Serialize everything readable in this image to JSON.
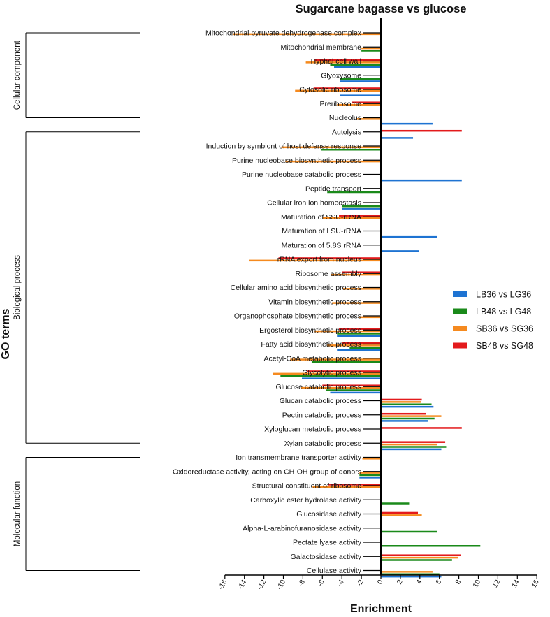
{
  "chart_data": {
    "type": "bar",
    "orientation": "horizontal",
    "title": "Sugarcane bagasse vs glucose",
    "xlabel": "Enrichment",
    "ylabel": "GO terms",
    "xlim": [
      -16,
      16
    ],
    "x_ticks": [
      "-16",
      "-14",
      "-12",
      "-10",
      "-8",
      "-6",
      "-4",
      "-2",
      "0",
      "2",
      "4",
      "6",
      "8",
      "10",
      "12",
      "14",
      "16"
    ],
    "legend_position": "right",
    "groups": [
      {
        "name": "Cellular component",
        "from": 0,
        "to": 6
      },
      {
        "name": "Biological process",
        "from": 7,
        "to": 29
      },
      {
        "name": "Molecular function",
        "from": 30,
        "to": 38
      }
    ],
    "series": [
      {
        "name": "LB36 vs LG36",
        "color": "#1e73d2"
      },
      {
        "name": "LB48 vs LG48",
        "color": "#1a8a1a"
      },
      {
        "name": "SB36 vs SG36",
        "color": "#f58a1f"
      },
      {
        "name": "SB48 vs SG48",
        "color": "#e31a1c"
      }
    ],
    "categories": [
      "Mitochondrial pyruvate dehydrogenase complex",
      "Mitochondrial membrane",
      "Hyphal cell wall",
      "Glyoxysome",
      "Cytosolic ribosome",
      "Preribosome",
      "Nucleolus",
      "Autolysis",
      "Induction by symbiont of host defense response",
      "Purine nucleobase biosynthetic process",
      "Purine nucleobase catabolic process",
      "Peptide transport",
      "Cellular iron ion homeostasis",
      "Maturation of SSU-rRNA",
      "Maturation of LSU-rRNA",
      "Maturation of 5.8S rRNA",
      "rRNA export from nucleus",
      "Ribosome assembly",
      "Cellular amino acid biosynthetic process",
      "Vitamin biosynthetic process",
      "Organophosphate biosynthetic process",
      "Ergosterol biosynthetic process",
      "Fatty acid biosynthetic process",
      "Acetyl-CoA metabolic process",
      "Glycolytic process",
      "Glucose catabolic process",
      "Glucan catabolic process",
      "Pectin catabolic process",
      "Xyloglucan metabolic process",
      "Xylan catabolic process",
      "Ion transmembrane transporter activity",
      "Oxidoreductase activity, acting on CH-OH group of donors",
      "Structural constituent of ribosome",
      "Carboxylic ester hydrolase activity",
      "Glucosidase activity",
      "Alpha-L-arabinofuranosidase activity",
      "Pectate lyase activity",
      "Galactosidase activity",
      "Cellulase activity"
    ],
    "values": [
      [
        null,
        null,
        -15.2,
        null
      ],
      [
        null,
        -2.0,
        -2.0,
        null
      ],
      [
        -4.8,
        -5.2,
        -7.7,
        -6.8
      ],
      [
        -4.2,
        -4.2,
        null,
        null
      ],
      [
        -4.2,
        null,
        -8.8,
        -6.9
      ],
      [
        null,
        null,
        -4.5,
        -3.0
      ],
      [
        5.3,
        null,
        -2.5,
        null
      ],
      [
        3.3,
        null,
        null,
        8.3
      ],
      [
        null,
        -6.1,
        -10.2,
        null
      ],
      [
        null,
        null,
        -9.8,
        null
      ],
      [
        8.3,
        null,
        null,
        null
      ],
      [
        null,
        -5.5,
        null,
        null
      ],
      [
        -4.0,
        -4.0,
        null,
        null
      ],
      [
        null,
        null,
        -6.0,
        -4.3
      ],
      [
        5.8,
        null,
        null,
        null
      ],
      [
        3.9,
        null,
        null,
        null
      ],
      [
        null,
        null,
        -13.5,
        -10.5
      ],
      [
        null,
        null,
        -5.1,
        -4.0
      ],
      [
        null,
        null,
        -3.9,
        null
      ],
      [
        null,
        null,
        -5.0,
        null
      ],
      [
        null,
        null,
        -2.3,
        null
      ],
      [
        -4.5,
        -4.5,
        -6.8,
        -4.3
      ],
      [
        -4.5,
        -3.2,
        -5.5,
        -4.0
      ],
      [
        null,
        -7.1,
        -9.3,
        null
      ],
      [
        -8.1,
        -10.3,
        -11.1,
        -7.6
      ],
      [
        -5.2,
        -5.6,
        -8.2,
        -6.0
      ],
      [
        5.4,
        5.2,
        4.1,
        4.2
      ],
      [
        4.8,
        5.5,
        6.2,
        4.6
      ],
      [
        null,
        null,
        null,
        8.3
      ],
      [
        6.2,
        6.7,
        5.8,
        6.6
      ],
      [
        null,
        null,
        -1.9,
        null
      ],
      [
        -2.2,
        -2.2,
        -2.2,
        null
      ],
      [
        null,
        null,
        -7.0,
        -5.4
      ],
      [
        null,
        2.9,
        null,
        null
      ],
      [
        null,
        null,
        4.2,
        3.8
      ],
      [
        null,
        5.8,
        null,
        null
      ],
      [
        null,
        10.2,
        null,
        null
      ],
      [
        null,
        7.3,
        7.9,
        8.2
      ],
      [
        6.2,
        6.0,
        5.3,
        null
      ]
    ]
  }
}
